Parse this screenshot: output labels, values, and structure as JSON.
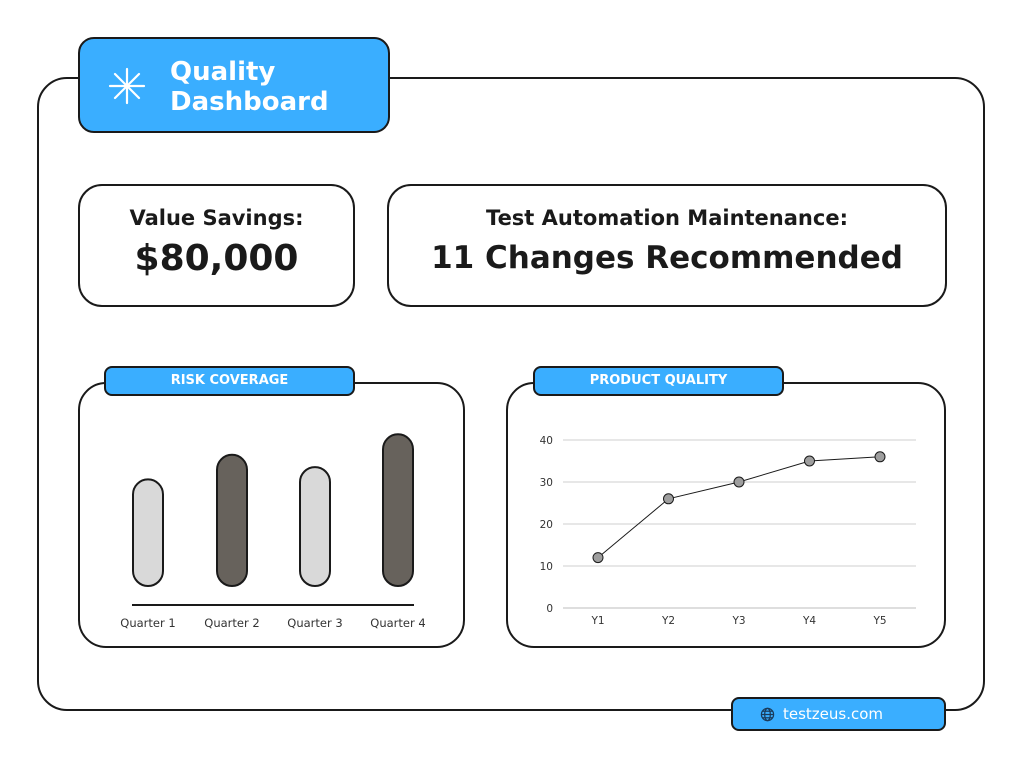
{
  "header": {
    "title": "Quality\nDashboard",
    "icon": "sparkle-icon",
    "accent": "#3aaeff"
  },
  "metrics": {
    "savings": {
      "label": "Value Savings:",
      "value": "$80,000"
    },
    "maintenance": {
      "label": "Test Automation Maintenance:",
      "value": "11 Changes Recommended"
    }
  },
  "panels": {
    "risk_title": "RISK COVERAGE",
    "quality_title": "PRODUCT QUALITY"
  },
  "footer": {
    "url": "testzeus.com",
    "icon": "globe-icon"
  },
  "chart_data": [
    {
      "type": "bar",
      "title": "RISK COVERAGE",
      "categories": [
        "Quarter 1",
        "Quarter 2",
        "Quarter 3",
        "Quarter 4"
      ],
      "values": [
        26,
        32,
        29,
        37
      ],
      "ylim": [
        0,
        40
      ],
      "colors": [
        "#d9d9d9",
        "#67625c",
        "#d9d9d9",
        "#67625c"
      ],
      "grid": false
    },
    {
      "type": "line",
      "title": "PRODUCT QUALITY",
      "x": [
        "Y1",
        "Y2",
        "Y3",
        "Y4",
        "Y5"
      ],
      "values": [
        12,
        26,
        30,
        35,
        36
      ],
      "yticks": [
        0,
        10,
        20,
        30,
        40
      ],
      "ylim": [
        0,
        40
      ],
      "grid": true
    }
  ]
}
